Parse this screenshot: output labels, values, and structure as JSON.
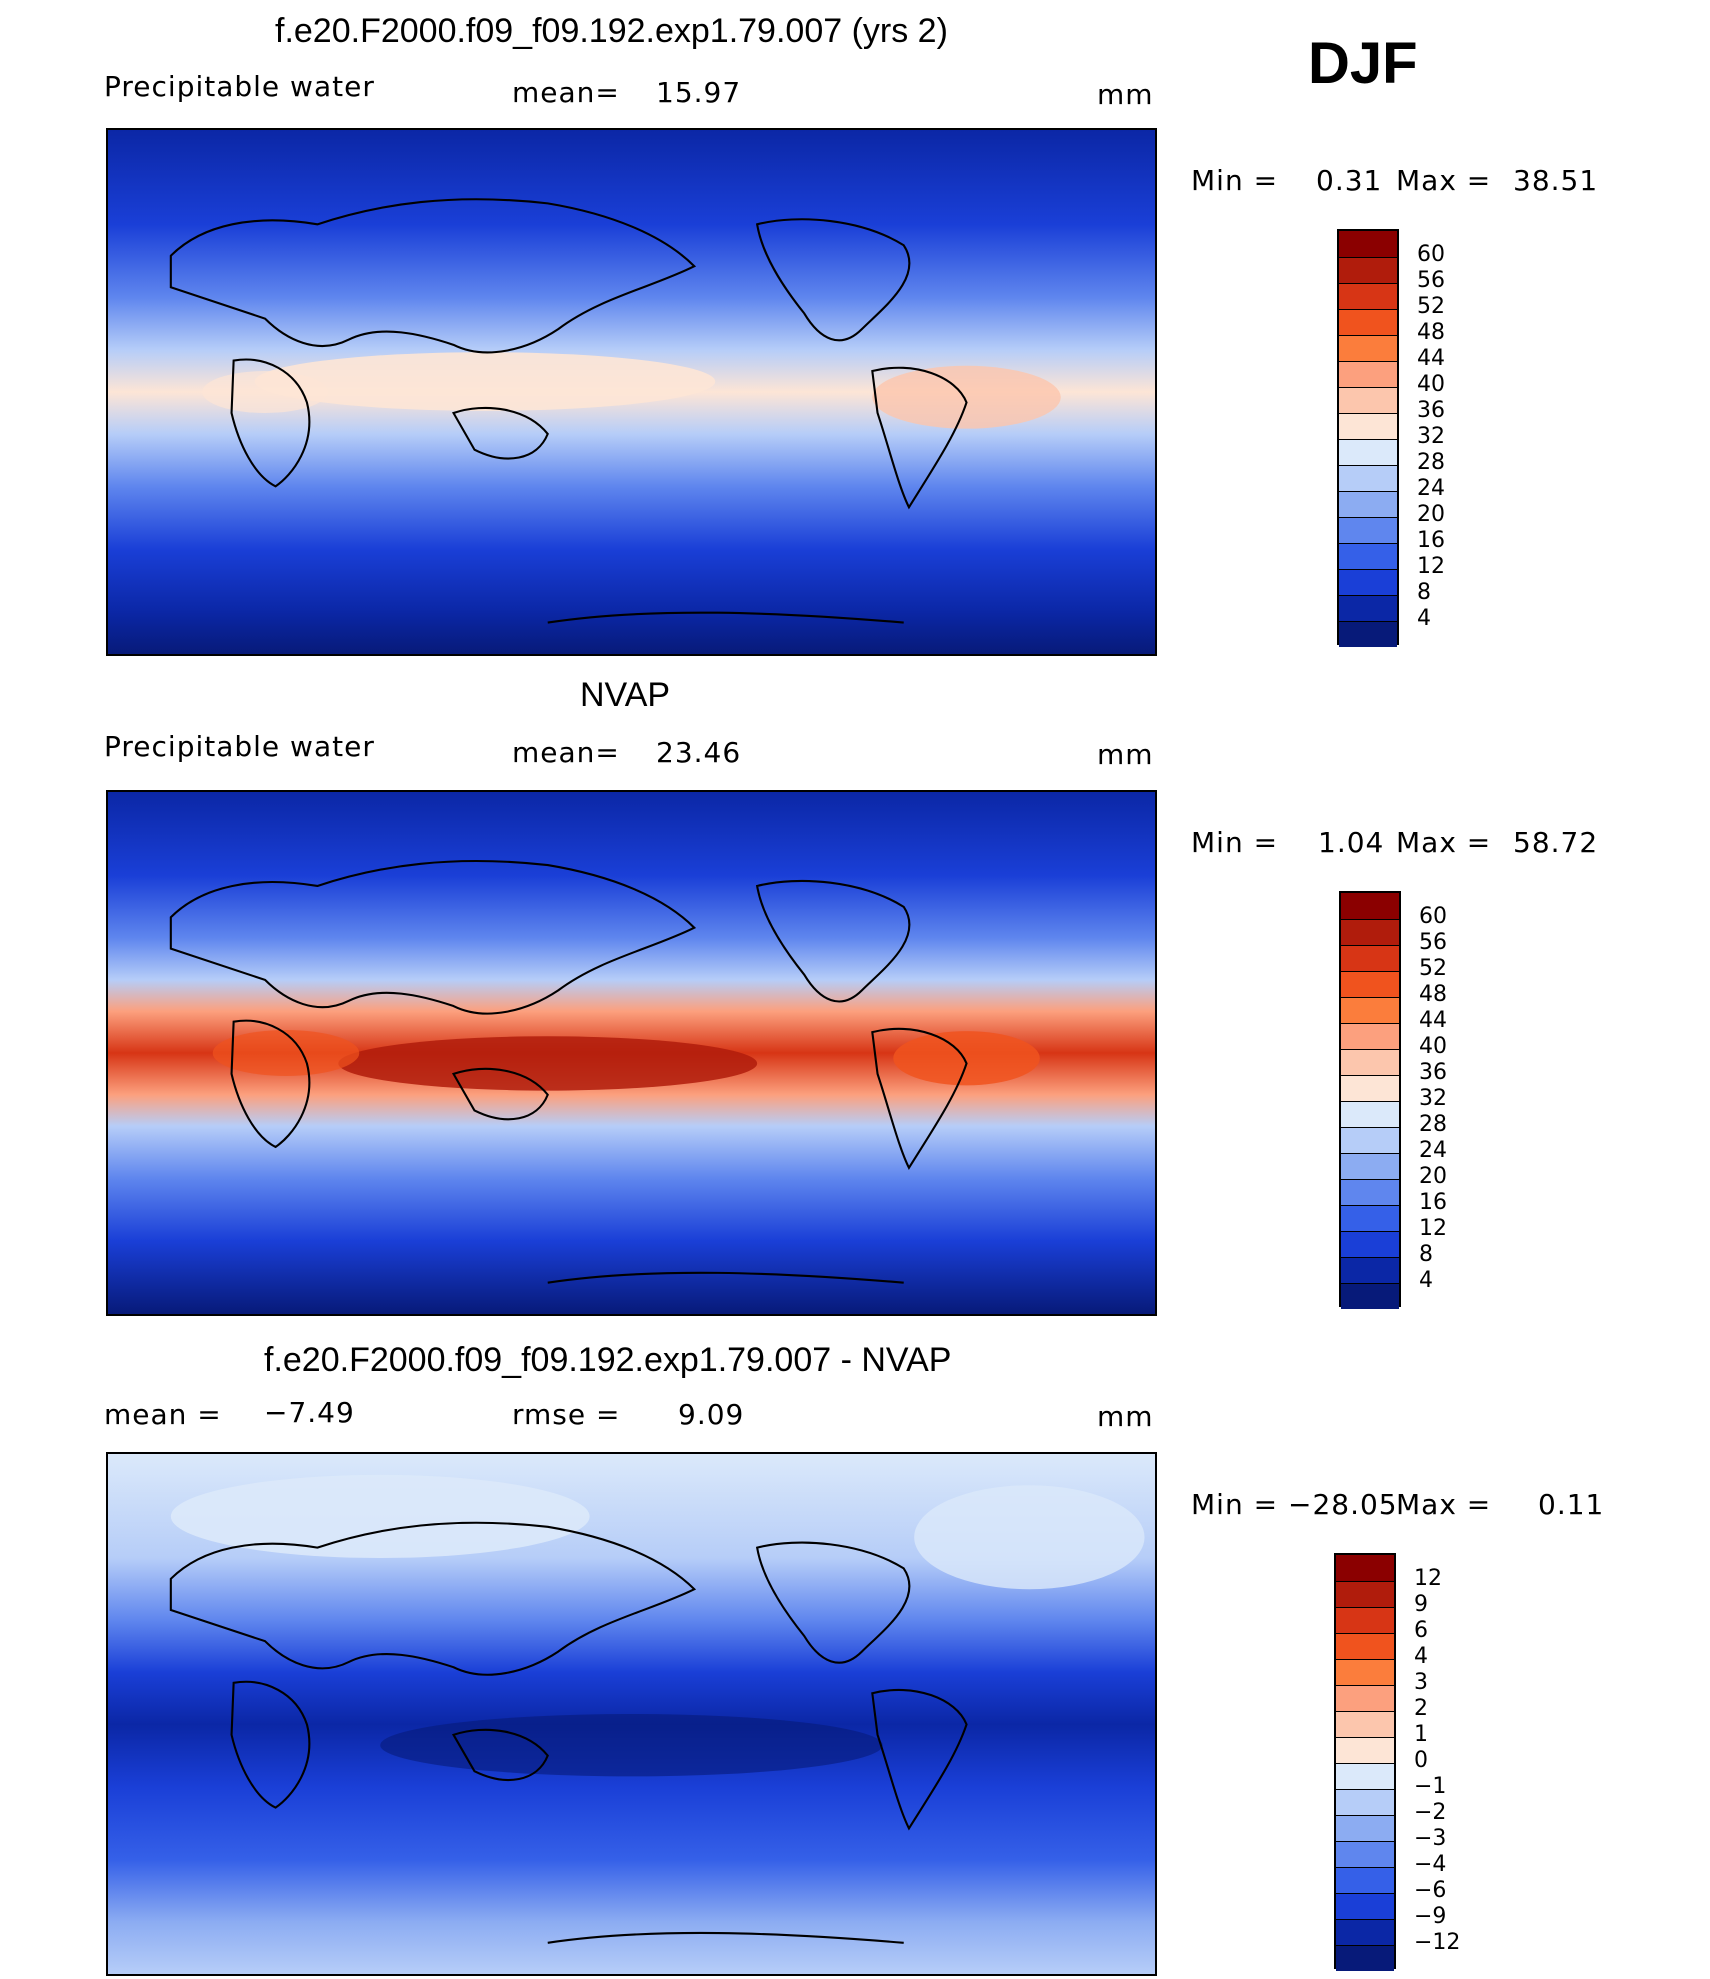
{
  "season": "DJF",
  "panels": [
    {
      "title": "f.e20.F2000.f09_f09.192.exp1.79.007 (yrs 2)",
      "left_label": "Precipitable  water",
      "mid_label": "mean=",
      "mid_value": "15.97",
      "units": "mm",
      "minmax": {
        "min_label": "Min  =",
        "min_value": "0.31",
        "max_label": "Max  =",
        "max_value": "38.51"
      },
      "colorbar": {
        "labels": [
          "60",
          "56",
          "52",
          "48",
          "44",
          "40",
          "36",
          "32",
          "28",
          "24",
          "20",
          "16",
          "12",
          "8",
          "4"
        ],
        "colors": [
          "#8b0000",
          "#b01c0c",
          "#d73515",
          "#f0531e",
          "#fb7d3c",
          "#fca07e",
          "#fcc6ad",
          "#fde5d6",
          "#dbe9fa",
          "#b6cdf8",
          "#8cacf2",
          "#5f86ee",
          "#3560e8",
          "#1a3fd7",
          "#0b27a6",
          "#071a79"
        ]
      },
      "map_style": "model"
    },
    {
      "title": "NVAP",
      "left_label": "Precipitable  water",
      "mid_label": "mean=",
      "mid_value": "23.46",
      "units": "mm",
      "minmax": {
        "min_label": "Min  =",
        "min_value": "1.04",
        "max_label": "Max  =",
        "max_value": "58.72"
      },
      "colorbar": {
        "labels": [
          "60",
          "56",
          "52",
          "48",
          "44",
          "40",
          "36",
          "32",
          "28",
          "24",
          "20",
          "16",
          "12",
          "8",
          "4"
        ],
        "colors": [
          "#8b0000",
          "#b01c0c",
          "#d73515",
          "#f0531e",
          "#fb7d3c",
          "#fca07e",
          "#fcc6ad",
          "#fde5d6",
          "#dbe9fa",
          "#b6cdf8",
          "#8cacf2",
          "#5f86ee",
          "#3560e8",
          "#1a3fd7",
          "#0b27a6",
          "#071a79"
        ]
      },
      "map_style": "obs"
    },
    {
      "title": "f.e20.F2000.f09_f09.192.exp1.79.007 - NVAP",
      "left_label": "mean  =",
      "left_value": "−7.49",
      "mid_label": "rmse  =",
      "mid_value": "9.09",
      "units": "mm",
      "minmax": {
        "min_label": "Min  =",
        "min_value": "−28.05",
        "max_label": "Max  =",
        "max_value": "0.11"
      },
      "colorbar": {
        "labels": [
          "12",
          "9",
          "6",
          "4",
          "3",
          "2",
          "1",
          "0",
          "−1",
          "−2",
          "−3",
          "−4",
          "−6",
          "−9",
          "−12"
        ],
        "colors": [
          "#8b0000",
          "#b01c0c",
          "#d73515",
          "#f0531e",
          "#fb7d3c",
          "#fca07e",
          "#fcc6ad",
          "#fde5d6",
          "#dbe9fa",
          "#b6cdf8",
          "#8cacf2",
          "#5f86ee",
          "#3560e8",
          "#1a3fd7",
          "#0b27a6",
          "#071a79"
        ]
      },
      "map_style": "diff"
    }
  ]
}
